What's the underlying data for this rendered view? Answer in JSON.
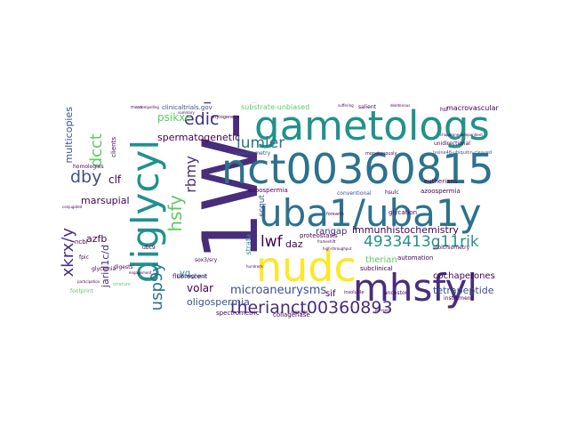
{
  "colors": {
    "background": "#ffffff",
    "palette": [
      "#440154",
      "#3b528b",
      "#21918c",
      "#5ec962",
      "#fde725",
      "#2c728e",
      "#472d7b"
    ]
  },
  "words": {
    "lw1": "1W-1",
    "nct00360815": "nct00360815",
    "gametologs": "gametologs",
    "diglycyl": "diglycyl",
    "uba1": "uba1/uba1y",
    "nudc": "nudc",
    "mhsfyl": "mhsfyl",
    "therianct": "therianct00360893",
    "lwf": "lwf",
    "g11rik": "4933413g11rik",
    "immuno": "immunhistochemistry",
    "hsfy": "hsfy",
    "microan": "microaneurysms",
    "usp9y": "usp9y",
    "xkrx": "xkrx/y",
    "dcct": "dcct",
    "dby": "dby",
    "edic": "edic",
    "lumier": "lumier",
    "rbmy": "rbmy",
    "psikxe": "psikxe",
    "spermato": "spermatogenetic",
    "multicopies": "multicopies",
    "marsupial": "marsupial",
    "azfb": "azfb",
    "clf": "clf",
    "jarid": "jarid1c/d",
    "volar": "volar",
    "oligo": "oligospermia",
    "tetra": "tetrapeptide",
    "chaper": "cochaperones",
    "therian2": "therian",
    "rangap": "rangap",
    "daz": "daz",
    "yq": "yq",
    "sif": "sif",
    "substrate": "substrate-unbiased",
    "clinicaltrials": "clinicaltrials.gov",
    "macrovascular": "macrovascular",
    "scqut": "scqut",
    "strata": "strata",
    "collagenase": "collagenase",
    "spectrometric": "spectrometric",
    "glycation": "glycation",
    "automation": "automation",
    "subclinical": "subclinical",
    "fluorescent": "fluorescent",
    "throughput": "throughput",
    "proteostasis": "proteostasis",
    "salient": "salient",
    "euthierians": "eutherians",
    "spectrometry": "spectrometry",
    "azoospermia": "azoospermia",
    "conventional": "conventional",
    "clients": "clients",
    "glycemia": "glycemia",
    "homologies": "homologies",
    "ncbi": "ncbi",
    "digests": "digests",
    "footprint": "footprint",
    "instrument": "instrument",
    "stoichiometry": "stoichiometry",
    "ancestor": "ancestor",
    "insoluble": "insoluble",
    "sox3": "sox3/sry",
    "ubc9": "ubc9",
    "hsf": "hsf",
    "hsulc": "hsulc",
    "forearm": "forearm",
    "ubiquitin": "lysine48-ubiquitin-cleaved",
    "unidirectional": "unidirectional",
    "quantification": "quantification",
    "phylogenetic": "phylogenetic",
    "monotonously": "monotonously",
    "cascade": "cascade",
    "flanking": "flanking",
    "convergence": "convergence",
    "orthologs": "orthologs",
    "yeast": "yeast",
    "dosage": "dosage",
    "dedicated": "dedicated",
    "gene": "gene",
    "pedigree": "pedigree",
    "cytoskeleton": "cytoskeleton",
    "placental": "placental",
    "ordered": "ordered",
    "assay": "assay",
    "pressed": "pressed",
    "conjugated": "conjugated",
    "participation": "participation",
    "mass": "mass",
    "compelling": "compelling",
    "retinopathy": "retinopathy",
    "insulin": "insulin",
    "serum": "serum",
    "engagement": "engagement",
    "fpic": "fpic",
    "stratum": "stratum",
    "hundreds": "hundreds",
    "hemizygous": "hemizygous",
    "spermiogenesis": "spermiogenesis",
    "glutamine": "glutamine",
    "deubiquitinase": "deubiquitinase",
    "chaperone": "chaperone-independent",
    "quantitative": "quantitative",
    "kinase": "kinase",
    "recovery": "recovery",
    "expressed": "expressed",
    "tissue": "tissue",
    "protein": "protein",
    "mapped": "mapped",
    "eutherian": "eutherian",
    "yanonmous": "y-chromosomal",
    "nearly": "nearly",
    "promotes": "promotes",
    "sfemalarity": "similarity",
    "recruitment": "recruitment",
    "hydrolysis": "hydrolysis",
    "transcript": "transcript",
    "thermal": "thermal",
    "clinically": "clinically",
    "multiplex": "multiplex",
    "selective": "selective",
    "sequencing": "sequencing",
    "diabetes": "diabetes",
    "suffering": "suffering",
    "deleterious": "deleterious",
    "dataset": "dataset",
    "surrogate": "surrogate",
    "frameshift": "frameshift",
    "highthroughput": "high-throughput",
    "intermediate": "intermediate",
    "variants": "variants",
    "summary": "summary",
    "lineage": "lineage",
    "cohort": "cohort"
  }
}
